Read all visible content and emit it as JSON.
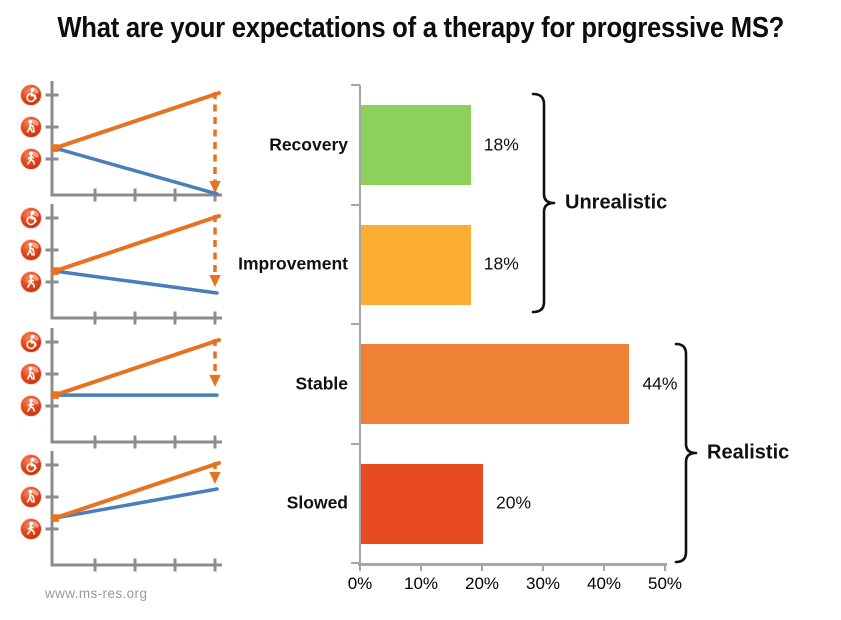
{
  "title": "What are your expectations of a therapy for progressive MS?",
  "source": "www.ms-res.org",
  "colors": {
    "bar_green": "#8ED05C",
    "bar_amber": "#FCAE33",
    "bar_orange": "#EE8133",
    "bar_red": "#E74A20",
    "line_orange": "#E8721F",
    "line_blue": "#4A7EBB",
    "mini_axis_gray": "#8C8C8C",
    "bar_axis_gray": "#A6A6A6",
    "text_black": "#111111",
    "source_gray": "#9A9A9A",
    "icon_red_light": "#F6875B",
    "icon_red": "#E84A1C",
    "icon_red_dark": "#C03010"
  },
  "chart_data": {
    "type": "bar",
    "orientation": "horizontal",
    "title": "What are your expectations of a therapy for progressive MS?",
    "categories": [
      "Recovery",
      "Improvement",
      "Stable",
      "Slowed"
    ],
    "values": [
      18,
      18,
      44,
      20
    ],
    "value_labels": [
      "18%",
      "18%",
      "44%",
      "20%"
    ],
    "bar_color_keys": [
      "bar_green",
      "bar_amber",
      "bar_orange",
      "bar_red"
    ],
    "x_ticks": [
      0,
      10,
      20,
      30,
      40,
      50
    ],
    "x_tick_labels": [
      "0%",
      "10%",
      "20%",
      "30%",
      "40%",
      "50%"
    ],
    "xlim": [
      0,
      50
    ],
    "grid": false,
    "legend": "none",
    "groups": [
      {
        "label": "Unrealistic",
        "categories": [
          "Recovery",
          "Improvement"
        ]
      },
      {
        "label": "Realistic",
        "categories": [
          "Stable",
          "Slowed"
        ]
      }
    ]
  },
  "mini_charts": {
    "description": "Disability-over-time diagrams; orange = untreated progression, blue = with therapy, dashed arrow = expected reduction",
    "y_axis_icons": [
      "wheelchair-icon",
      "person-with-cane-icon",
      "person-walking-icon"
    ],
    "start_level": 46,
    "progression_end_level": 100,
    "scenarios": [
      {
        "name": "recovery",
        "therapy_end_level": 1.0,
        "arrow_tip_level": 2.0
      },
      {
        "name": "improvement",
        "therapy_end_level": 24.5,
        "arrow_tip_level": 30.4
      },
      {
        "name": "stable",
        "therapy_end_level": 46.0,
        "arrow_tip_level": 54.0
      },
      {
        "name": "slowed",
        "therapy_end_level": 74.5,
        "arrow_tip_level": 79.4
      }
    ]
  }
}
